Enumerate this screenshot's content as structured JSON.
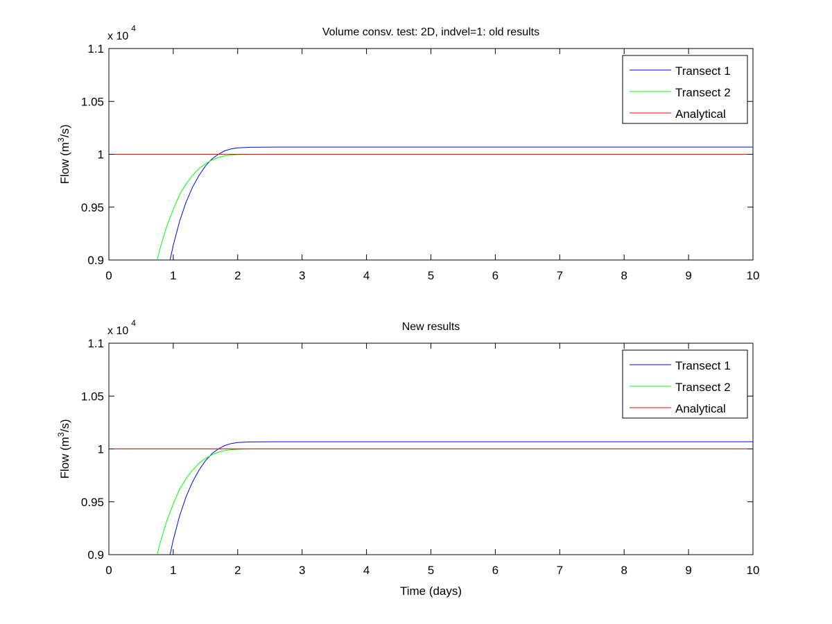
{
  "figure": {
    "background": "#ffffff"
  },
  "chart_data": [
    {
      "type": "line",
      "title": "Volume consv. test: 2D, indvel=1: old results",
      "xlabel": "",
      "ylabel": "Flow (m",
      "ylabel_superscript": "3",
      "ylabel_suffix": "/s)",
      "multiplier_label": "x 10",
      "multiplier_exponent": "4",
      "xlim": [
        0,
        10
      ],
      "ylim": [
        0.9,
        1.1
      ],
      "x_ticks": [
        "0",
        "1",
        "2",
        "3",
        "4",
        "5",
        "6",
        "7",
        "8",
        "9",
        "10"
      ],
      "y_ticks": [
        "0.9",
        "0.95",
        "1",
        "1.05",
        "1.1"
      ],
      "legend_position": "top-right",
      "grid": false,
      "series": [
        {
          "name": "Transect 1",
          "color": "#0000ff",
          "x": [
            0.95,
            1.0,
            1.1,
            1.2,
            1.3,
            1.4,
            1.5,
            1.6,
            1.7,
            1.8,
            1.9,
            2.0,
            2.2,
            2.4,
            2.6,
            3.0,
            5.0,
            10.0
          ],
          "y": [
            0.9,
            0.914,
            0.937,
            0.955,
            0.969,
            0.98,
            0.989,
            0.9955,
            1.0,
            1.0033,
            1.0051,
            1.0061,
            1.0066,
            1.0067,
            1.0068,
            1.0068,
            1.0068,
            1.0068
          ]
        },
        {
          "name": "Transect 2",
          "color": "#00ff00",
          "x": [
            0.75,
            0.8,
            0.9,
            1.0,
            1.1,
            1.2,
            1.3,
            1.4,
            1.5,
            1.6,
            1.7,
            1.8,
            1.9,
            2.0,
            2.2
          ],
          "y": [
            0.9,
            0.912,
            0.932,
            0.948,
            0.962,
            0.972,
            0.98,
            0.9865,
            0.991,
            0.9945,
            0.997,
            0.9985,
            0.9993,
            0.9997,
            1.0
          ]
        },
        {
          "name": "Analytical",
          "color": "#ff0000",
          "x": [
            0,
            10
          ],
          "y": [
            1.0,
            1.0
          ]
        }
      ]
    },
    {
      "type": "line",
      "title": "New results",
      "xlabel": "Time (days)",
      "ylabel": "Flow (m",
      "ylabel_superscript": "3",
      "ylabel_suffix": "/s)",
      "multiplier_label": "x 10",
      "multiplier_exponent": "4",
      "xlim": [
        0,
        10
      ],
      "ylim": [
        0.9,
        1.1
      ],
      "x_ticks": [
        "0",
        "1",
        "2",
        "3",
        "4",
        "5",
        "6",
        "7",
        "8",
        "9",
        "10"
      ],
      "y_ticks": [
        "0.9",
        "0.95",
        "1",
        "1.05",
        "1.1"
      ],
      "legend_position": "top-right",
      "grid": false,
      "series": [
        {
          "name": "Transect 1",
          "color": "#0000ff",
          "x": [
            0.95,
            1.0,
            1.1,
            1.2,
            1.3,
            1.4,
            1.5,
            1.6,
            1.7,
            1.8,
            1.9,
            2.0,
            2.2,
            2.4,
            2.6,
            3.0,
            5.0,
            10.0
          ],
          "y": [
            0.9,
            0.914,
            0.937,
            0.955,
            0.969,
            0.98,
            0.989,
            0.9955,
            1.0,
            1.0033,
            1.0051,
            1.0061,
            1.0066,
            1.0067,
            1.0068,
            1.0068,
            1.0068,
            1.0068
          ]
        },
        {
          "name": "Transect 2",
          "color": "#00ff00",
          "x": [
            0.75,
            0.8,
            0.9,
            1.0,
            1.1,
            1.2,
            1.3,
            1.4,
            1.5,
            1.6,
            1.7,
            1.8,
            1.9,
            2.0,
            2.2
          ],
          "y": [
            0.9,
            0.912,
            0.932,
            0.948,
            0.962,
            0.972,
            0.98,
            0.9865,
            0.991,
            0.9945,
            0.997,
            0.9985,
            0.9993,
            0.9997,
            1.0
          ]
        },
        {
          "name": "Analytical",
          "color": "#ff0000",
          "x": [
            0,
            10
          ],
          "y": [
            1.0,
            1.0
          ]
        }
      ]
    }
  ]
}
